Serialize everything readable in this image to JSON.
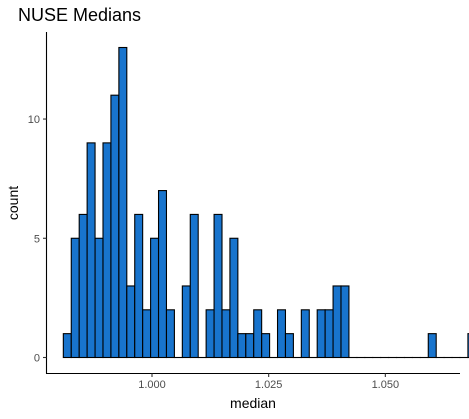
{
  "chart_data": {
    "type": "bar",
    "title": "NUSE Medians",
    "xlabel": "median",
    "ylabel": "count",
    "bin_start": 0.981,
    "bin_width": 0.0017,
    "values": [
      1,
      5,
      6,
      9,
      5,
      9,
      11,
      13,
      3,
      6,
      2,
      5,
      7,
      2,
      0,
      3,
      6,
      0,
      2,
      6,
      2,
      5,
      1,
      1,
      2,
      1,
      0,
      2,
      1,
      0,
      2,
      0,
      2,
      2,
      3,
      3,
      0,
      0,
      0,
      0,
      0,
      0,
      0,
      0,
      0,
      0,
      1,
      0,
      0,
      0,
      0,
      1
    ],
    "xlim": [
      0.9775,
      1.066
    ],
    "ylim": [
      -0.65,
      13.65
    ],
    "x_ticks": [
      1.0,
      1.025,
      1.05
    ],
    "x_tick_labels": [
      "1.000",
      "1.025",
      "1.050"
    ],
    "y_ticks": [
      0,
      5,
      10
    ],
    "y_tick_labels": [
      "0",
      "5",
      "10"
    ],
    "bar_color": "#1874CD",
    "bar_outline": "#000000",
    "grid": false,
    "legend": "none"
  }
}
